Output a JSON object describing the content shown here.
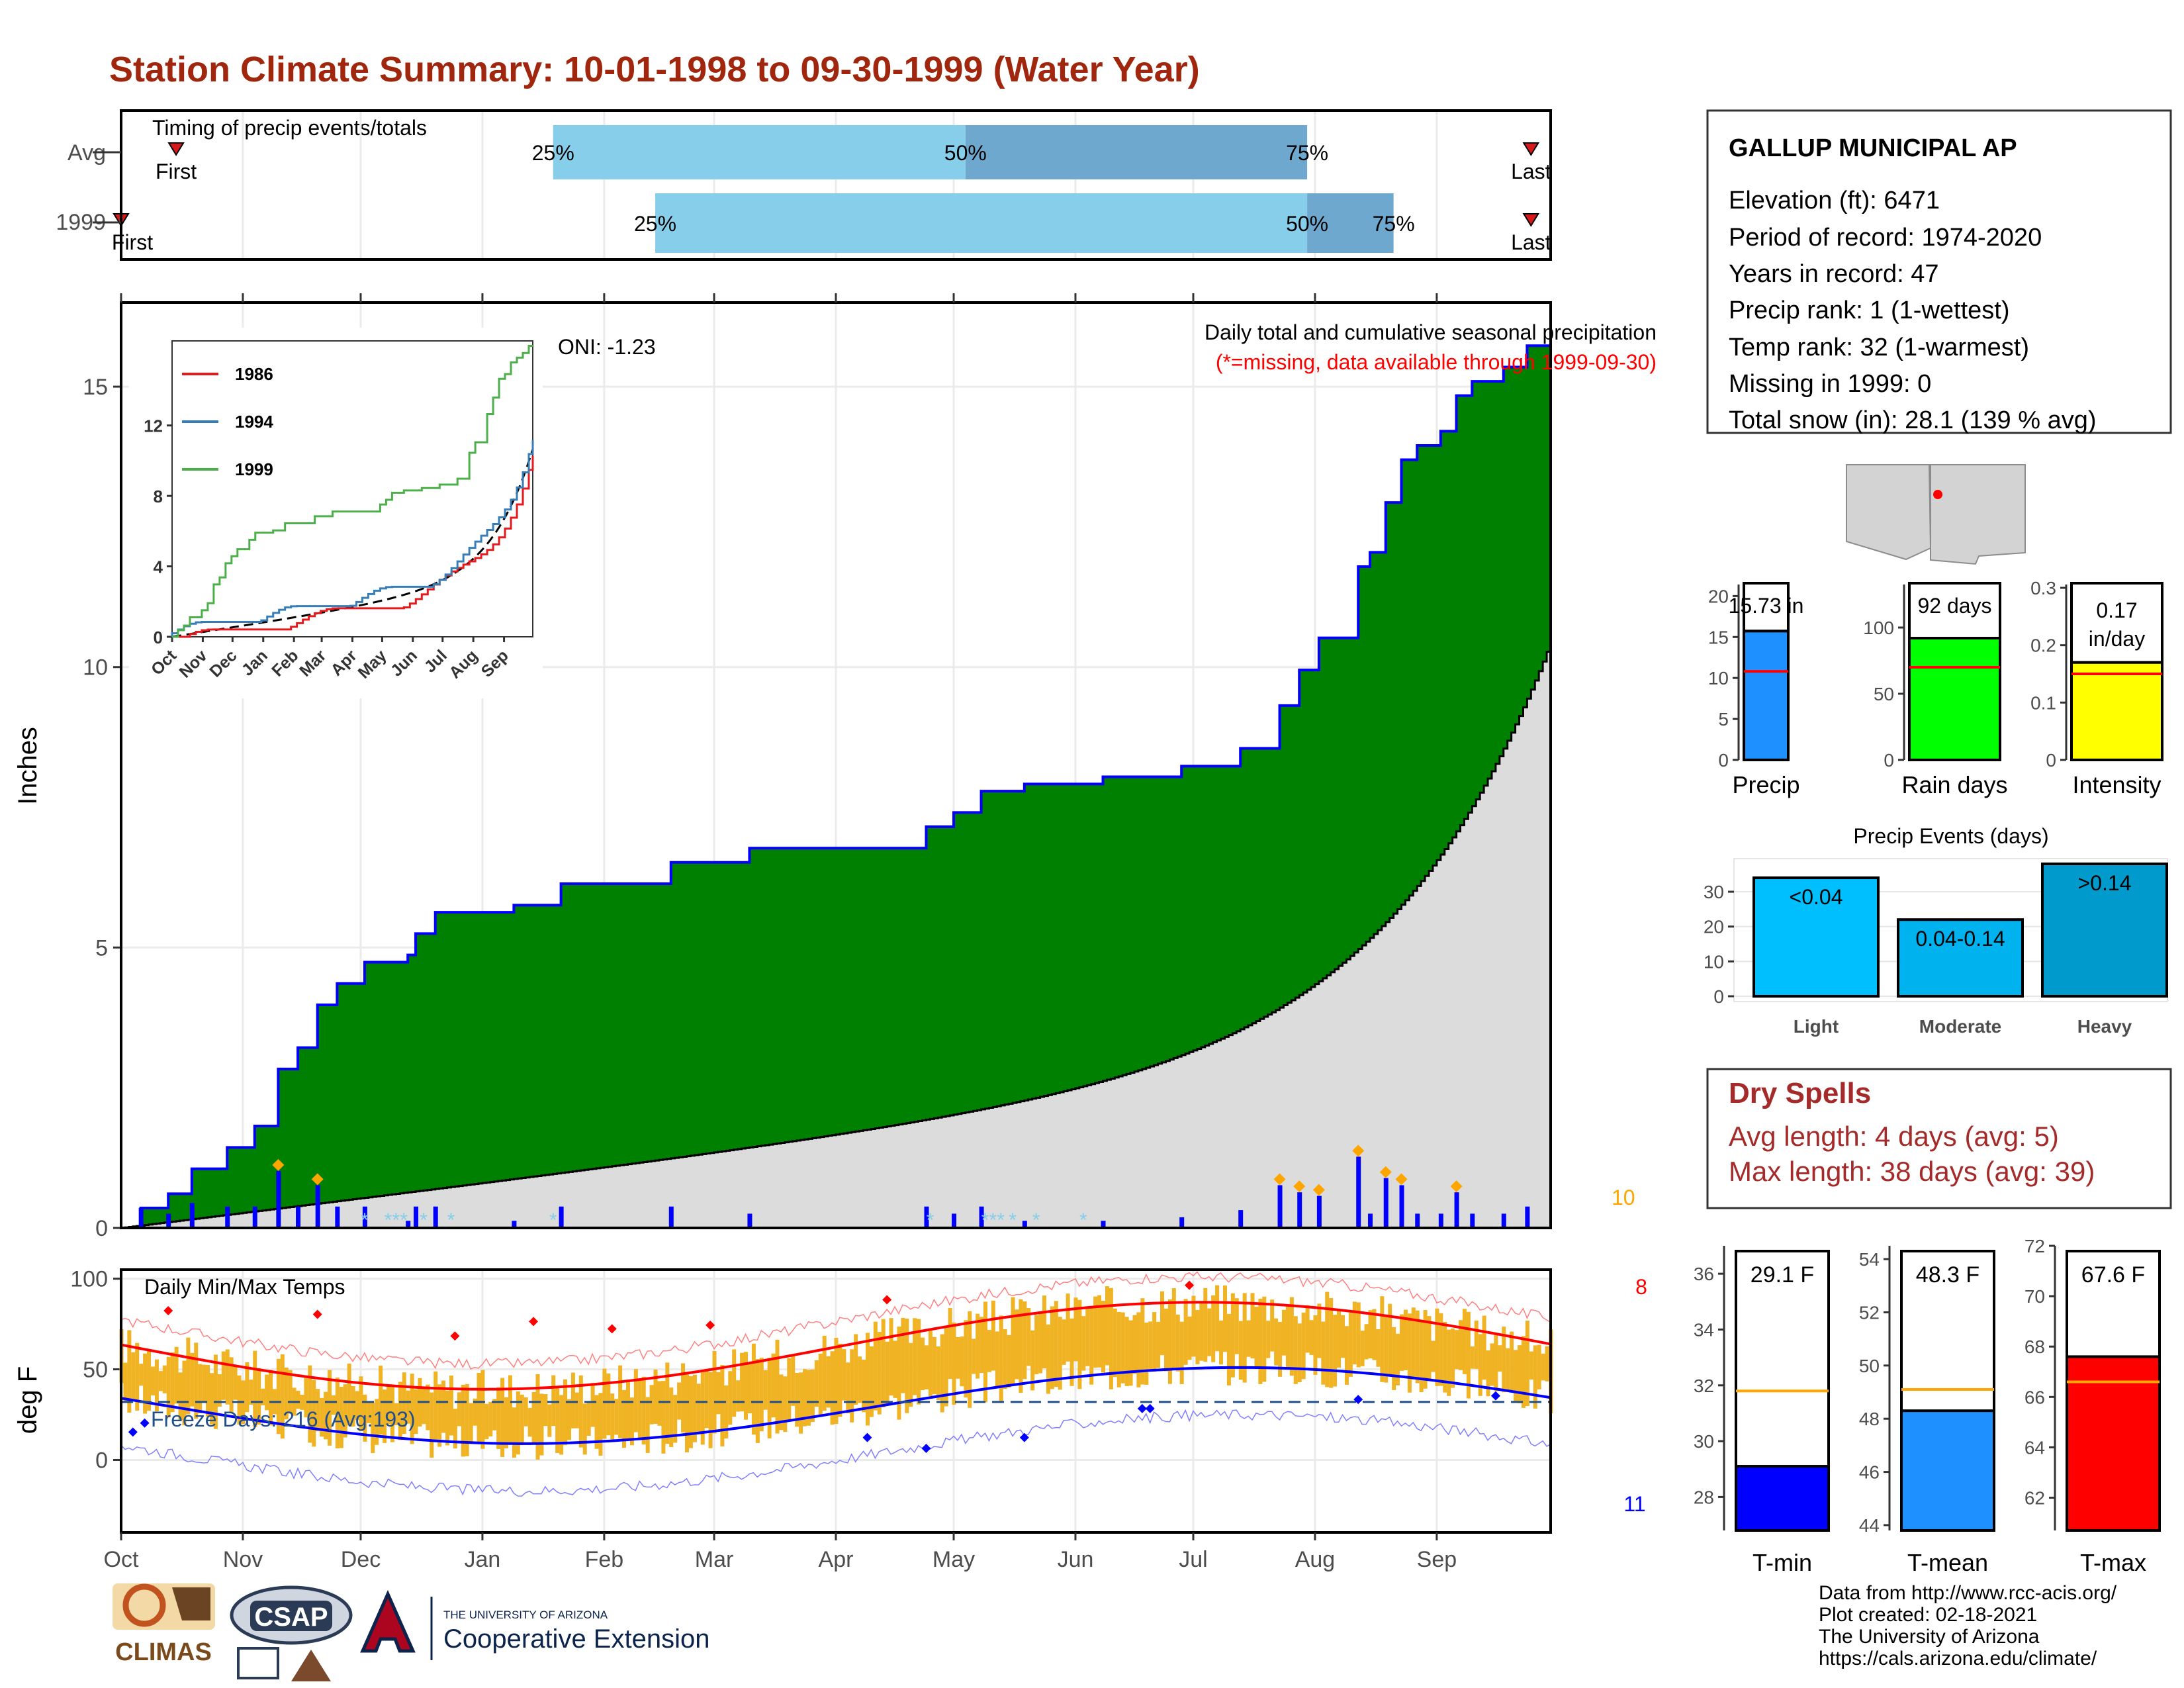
{
  "title": "Station Climate Summary: 10-01-1998 to 09-30-1999 (Water Year)",
  "timing": {
    "label": "Timing of precip events/totals",
    "rows": [
      "Avg",
      "1999"
    ],
    "avg": {
      "first": "10-15",
      "q25": "01-19",
      "q50": "05-04",
      "q75": "07-30",
      "last": "09-25"
    },
    "year": {
      "first": "10-01",
      "q25": "02-14",
      "q50": "07-30",
      "q75": "08-21",
      "last": "09-25"
    },
    "first_label": "First",
    "last_label": "Last",
    "q25_label": "25%",
    "q50_label": "50%",
    "q75_label": "75%",
    "colors": {
      "light": "#87ceeb",
      "dark": "#6fa8cf",
      "marker": "#d7191c"
    }
  },
  "months": [
    "Oct",
    "Nov",
    "Dec",
    "Jan",
    "Feb",
    "Mar",
    "Apr",
    "May",
    "Jun",
    "Jul",
    "Aug",
    "Sep"
  ],
  "precip_panel": {
    "ylabel": "Inches",
    "yticks": [
      0,
      5,
      10,
      15
    ],
    "ylim": [
      0,
      16.5
    ],
    "oni": "ONI: -1.23",
    "caption": "Daily total and cumulative seasonal precipitation",
    "missing_note": "(*=missing, data available through 1999-09-30)",
    "corner_count": "10",
    "colors": {
      "above": "#008000",
      "below": "#7f5a0f",
      "avg_fill": "#dcdcdc",
      "obs_line": "#0000ff",
      "bar": "#0000ff",
      "marker": "#ffa500",
      "missing": "#87ceeb"
    }
  },
  "inset": {
    "yticks": [
      0,
      4,
      8,
      12
    ],
    "months": [
      "Oct",
      "Nov",
      "Dec",
      "Jan",
      "Feb",
      "Mar",
      "Apr",
      "May",
      "Jun",
      "Jul",
      "Aug",
      "Sep"
    ],
    "legend": [
      {
        "name": "1986",
        "color": "#e41a1c"
      },
      {
        "name": "1994",
        "color": "#377eb8"
      },
      {
        "name": "1999",
        "color": "#4daf4a"
      }
    ]
  },
  "temp_panel": {
    "ylabel": "deg F",
    "yticks": [
      0,
      50,
      100
    ],
    "ylim": [
      -40,
      105
    ],
    "title": "Daily Min/Max Temps",
    "freeze_label": "Freeze Days: 216 (Avg:193)",
    "freeze_line": 32,
    "count_high": "8",
    "count_low": "11",
    "colors": {
      "bar": "#f0b323",
      "max_line": "#ff0000",
      "min_line": "#0000ff"
    }
  },
  "station": {
    "name": "GALLUP MUNICIPAL AP",
    "lines": [
      "Elevation (ft): 6471",
      "Period of record: 1974-2020",
      "Years in record: 47",
      "Precip rank: 1 (1-wettest)",
      "Temp rank: 32 (1-warmest)",
      "Missing in 1999: 0",
      "Total snow (in): 28.1 (139 % avg)"
    ]
  },
  "summary_bars": [
    {
      "label": "Precip",
      "value_text": "15.73 in",
      "value": 15.73,
      "avg": 10.8,
      "ymax": 21,
      "ticks": [
        0,
        5,
        10,
        15,
        20
      ],
      "color": "#1e90ff"
    },
    {
      "label": "Rain days",
      "value_text": "92 days",
      "value": 92,
      "avg": 70,
      "ymax": 130,
      "ticks": [
        0,
        50,
        100
      ],
      "color": "#00ff00"
    },
    {
      "label": "Intensity",
      "value_text": "0.17 in/day",
      "value": 0.17,
      "avg": 0.15,
      "ymax": 0.3,
      "ticks": [
        0.0,
        0.1,
        0.2,
        0.3
      ],
      "color": "#ffff00"
    }
  ],
  "events": {
    "title": "Precip Events (days)",
    "ticks": [
      0,
      10,
      20,
      30
    ],
    "ymax": 38,
    "bars": [
      {
        "category": "Light",
        "label": "<0.04",
        "value": 34,
        "color": "#00bfff"
      },
      {
        "category": "Moderate",
        "label": "0.04-0.14",
        "value": 22,
        "color": "#00b2ee"
      },
      {
        "category": "Heavy",
        "label": ">0.14",
        "value": 38,
        "color": "#009acd"
      }
    ]
  },
  "dry_spells": {
    "title": "Dry Spells",
    "avg": "Avg length: 4 days (avg: 5)",
    "max": "Max length: 38 days (avg: 39)"
  },
  "temp_bars": [
    {
      "label": "T-min",
      "value_text": "29.1 F",
      "value": 29.1,
      "avg": 31.8,
      "ylim": [
        26.8,
        37
      ],
      "ticks": [
        28,
        30,
        32,
        34,
        36
      ],
      "color": "#0000ff"
    },
    {
      "label": "T-mean",
      "value_text": "48.3 F",
      "value": 48.3,
      "avg": 49.1,
      "ylim": [
        43.8,
        54.5
      ],
      "ticks": [
        44,
        46,
        48,
        50,
        52,
        54
      ],
      "color": "#1e90ff"
    },
    {
      "label": "T-max",
      "value_text": "67.6 F",
      "value": 67.6,
      "avg": 66.6,
      "ylim": [
        60.7,
        72
      ],
      "ticks": [
        62,
        64,
        66,
        68,
        70,
        72
      ],
      "color": "#ff0000"
    }
  ],
  "credits": [
    "Data from http://www.rcc-acis.org/",
    "Plot created: 02-18-2021",
    "The University of Arizona",
    "https://cals.arizona.edu/climate/"
  ],
  "logos": {
    "climas": "CLIMAS",
    "csap": "CSAP",
    "ua_line1": "THE UNIVERSITY OF ARIZONA",
    "ua_line2": "Cooperative Extension"
  }
}
